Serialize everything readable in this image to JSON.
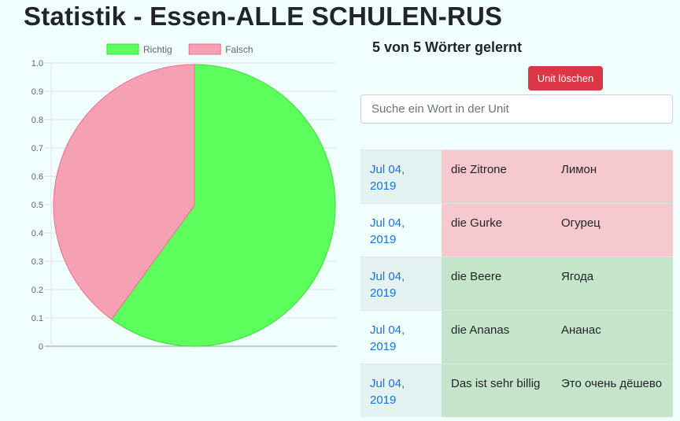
{
  "page": {
    "title": "Statistik - Essen-ALLE SCHULEN-RUS"
  },
  "stats": {
    "progress_text": "5 von 5 Wörter gelernt"
  },
  "actions": {
    "delete_unit_label": "Unit löschen"
  },
  "search": {
    "placeholder": "Suche ein Wort in der Unit",
    "value": ""
  },
  "chart_data": {
    "type": "pie",
    "labels": [
      "Richtig",
      "Falsch"
    ],
    "values": [
      0.6,
      0.4
    ],
    "colors": {
      "Richtig": "#5cff5c",
      "Falsch": "#f6a1b3"
    },
    "border_colors": {
      "Richtig": "#3ddc3d",
      "Falsch": "#ee6f8c"
    },
    "legend_position": "top",
    "y_ticks": [
      "0",
      "0.1",
      "0.2",
      "0.3",
      "0.4",
      "0.5",
      "0.6",
      "0.7",
      "0.8",
      "0.9",
      "1.0"
    ],
    "ylim": [
      0,
      1
    ],
    "grid": true
  },
  "words": [
    {
      "date": "Jul 04, 2019",
      "german": "die Zitrone",
      "russian": "Лимон",
      "status": "wrong"
    },
    {
      "date": "Jul 04, 2019",
      "german": "die Gurke",
      "russian": "Огурец",
      "status": "wrong"
    },
    {
      "date": "Jul 04, 2019",
      "german": "die Beere",
      "russian": "Ягода",
      "status": "right"
    },
    {
      "date": "Jul 04, 2019",
      "german": "die Ananas",
      "russian": "Ананас",
      "status": "right"
    },
    {
      "date": "Jul 04, 2019",
      "german": "Das ist sehr billig",
      "russian": "Это очень дёшево",
      "status": "right"
    }
  ]
}
